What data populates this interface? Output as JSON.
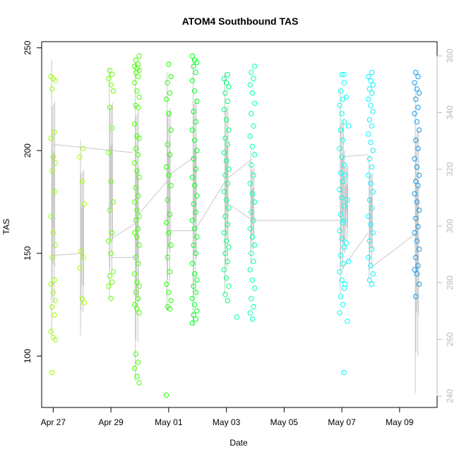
{
  "chart_data": {
    "type": "scatter",
    "title": "ATOM4 Southbound TAS",
    "xlabel": "Date",
    "ylabel": "TAS",
    "x_ticks": [
      "Apr 27",
      "Apr 29",
      "May 01",
      "May 03",
      "May 05",
      "May 07",
      "May 09"
    ],
    "x_tick_values": [
      0,
      2,
      4,
      6,
      8,
      10,
      12
    ],
    "xlim": [
      -0.4,
      13.3
    ],
    "ylim": [
      75,
      253
    ],
    "y_ticks": [
      100,
      150,
      200,
      250
    ],
    "y2_ticks": [
      240,
      260,
      280,
      300,
      320,
      340,
      360
    ],
    "y2lim": [
      236,
      365
    ],
    "grid": false,
    "legend": "none",
    "colors": {
      "line": "#c8c8c8",
      "axis": "#000000",
      "right_axis": "#bbbbbb"
    },
    "groups": [
      {
        "x": 0.0,
        "color": "#99ff00",
        "values": [
          236,
          235,
          234,
          230,
          209,
          206,
          197,
          194,
          190,
          180,
          168,
          160,
          154,
          148,
          137,
          135,
          131,
          127,
          124,
          120,
          112,
          109,
          108,
          92
        ],
        "line_range": [
          110,
          244
        ]
      },
      {
        "x": 1.0,
        "color": "#a6ff00",
        "values": [
          201,
          197,
          185,
          174,
          151,
          148,
          143,
          128,
          126
        ],
        "line_range": [
          110,
          205
        ]
      },
      {
        "x": 2.0,
        "color": "#66ff00",
        "values": [
          239,
          237,
          235,
          232,
          229,
          221,
          211,
          199,
          185,
          175,
          171,
          160,
          156,
          150,
          141,
          139,
          136,
          134,
          128
        ],
        "line_range": [
          128,
          240
        ]
      },
      {
        "x": 2.9,
        "color": "#44ff00",
        "values": [
          246,
          244,
          242,
          241,
          240,
          239,
          238,
          236,
          233,
          229,
          226,
          222,
          221,
          213,
          207,
          206,
          201,
          198,
          194,
          190,
          187,
          182,
          178,
          175,
          171,
          168,
          166,
          162,
          160,
          158,
          154,
          148,
          145,
          140,
          136,
          134,
          131,
          128,
          125,
          123,
          121,
          101,
          97,
          94,
          90,
          87
        ],
        "line_range": [
          88,
          243
        ]
      },
      {
        "x": 4.0,
        "color": "#22ff00",
        "values": [
          242,
          236,
          233,
          228,
          225,
          218,
          210,
          203,
          198,
          192,
          188,
          183,
          176,
          169,
          165,
          160,
          154,
          148,
          141,
          135,
          131,
          127,
          124,
          123,
          81
        ],
        "line_range": [
          122,
          238
        ]
      },
      {
        "x": 4.9,
        "color": "#00ff22",
        "values": [
          246,
          244,
          243,
          241,
          238,
          234,
          229,
          224,
          219,
          214,
          210,
          205,
          200,
          196,
          191,
          187,
          183,
          178,
          174,
          170,
          166,
          162,
          158,
          154,
          150,
          145,
          140,
          137,
          134,
          131,
          128,
          125,
          122,
          120,
          118,
          116
        ],
        "line_range": [
          115,
          245
        ]
      },
      {
        "x": 6.0,
        "color": "#00ff77",
        "values": [
          237,
          235,
          233,
          231,
          228,
          224,
          220,
          215,
          210,
          206,
          203,
          199,
          195,
          191,
          188,
          184,
          180,
          176,
          172,
          168,
          164,
          160,
          156,
          153,
          150,
          146,
          142,
          138,
          134,
          130,
          127
        ],
        "line_range": [
          130,
          238
        ]
      },
      {
        "x": 6.4,
        "color": "#00ff99",
        "values": [
          119
        ]
      },
      {
        "x": 6.9,
        "color": "#00ffbb",
        "values": [
          241,
          238,
          235,
          232,
          228,
          223,
          218,
          212,
          207,
          202,
          198,
          193,
          188,
          184,
          179,
          175,
          170,
          166,
          162,
          158,
          154,
          150,
          146,
          142,
          137,
          133,
          128,
          124,
          121,
          118
        ],
        "line_range": [
          145,
          200
        ]
      },
      {
        "x": 10.0,
        "color": "#00ffee",
        "values": [
          237,
          233,
          229,
          225,
          222,
          218,
          214,
          210,
          205,
          201,
          197,
          193,
          189,
          185,
          181,
          177,
          173,
          169,
          165,
          161,
          157,
          153,
          149,
          145,
          141,
          137,
          133,
          129,
          125,
          121
        ],
        "line_range": [
          130,
          230
        ]
      },
      {
        "x": 10.15,
        "color": "#00ffff",
        "values": [
          237,
          226,
          212,
          188,
          176,
          166,
          155,
          146,
          135,
          117,
          92
        ],
        "line_range": [
          150,
          200
        ]
      },
      {
        "x": 11.0,
        "color": "#11eeff",
        "values": [
          238,
          236,
          234,
          232,
          230,
          228,
          225,
          222,
          219,
          215,
          212,
          208,
          204,
          200,
          196,
          192,
          188,
          184,
          180,
          176,
          172,
          168,
          164,
          160,
          156,
          152,
          148,
          144,
          140,
          137,
          135
        ],
        "line_range": [
          137,
          198
        ]
      },
      {
        "x": 12.6,
        "color": "#1199ee",
        "values": [
          238,
          236,
          233,
          230,
          228,
          225,
          221,
          218,
          214,
          210,
          205,
          201,
          196,
          192,
          188,
          185,
          183,
          179,
          175,
          171,
          167,
          163,
          160,
          156,
          152,
          148,
          144,
          142,
          140,
          135,
          129
        ],
        "line_range": [
          82,
          233
        ]
      }
    ],
    "connectors": [
      {
        "x": [
          0.0,
          2.75
        ],
        "y": [
          203,
          199
        ]
      },
      {
        "x": [
          0.0,
          1.0
        ],
        "y": [
          149,
          150
        ]
      },
      {
        "x": [
          2.0,
          2.9
        ],
        "y": [
          148,
          148
        ]
      },
      {
        "x": [
          2.0,
          2.9
        ],
        "y": [
          157,
          165
        ]
      },
      {
        "x": [
          2.9,
          4.0
        ],
        "y": [
          168,
          186
        ]
      },
      {
        "x": [
          4.0,
          4.9
        ],
        "y": [
          188,
          197
        ]
      },
      {
        "x": [
          4.0,
          4.9
        ],
        "y": [
          161,
          161
        ]
      },
      {
        "x": [
          4.9,
          6.0
        ],
        "y": [
          161,
          186
        ]
      },
      {
        "x": [
          6.0,
          6.9
        ],
        "y": [
          186,
          196
        ]
      },
      {
        "x": [
          6.0,
          6.9
        ],
        "y": [
          175,
          166
        ]
      },
      {
        "x": [
          6.9,
          10.0
        ],
        "y": [
          166,
          166
        ]
      },
      {
        "x": [
          10.0,
          10.9
        ],
        "y": [
          197,
          198
        ]
      },
      {
        "x": [
          10.0,
          10.9
        ],
        "y": [
          142,
          160
        ]
      },
      {
        "x": [
          10.9,
          12.6
        ],
        "y": [
          142,
          160
        ]
      }
    ]
  }
}
